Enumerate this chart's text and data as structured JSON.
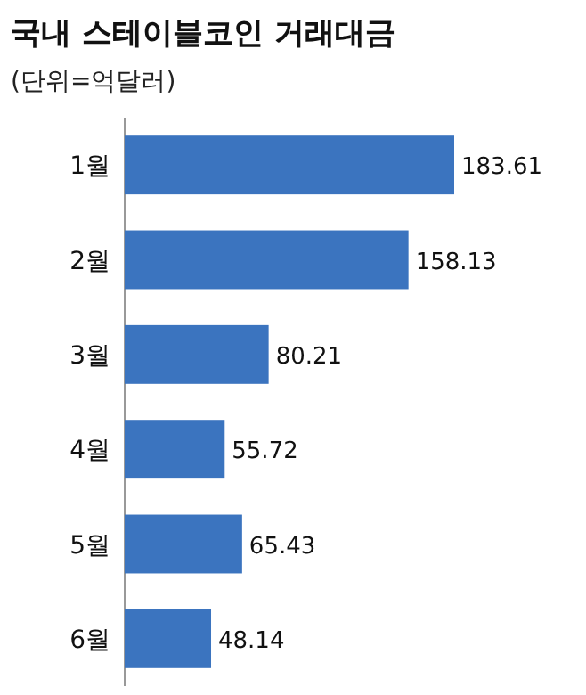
{
  "chart_data": {
    "type": "bar",
    "orientation": "horizontal",
    "title": "국내 스테이블코인 거래대금",
    "subtitle": "(단위=억달러)",
    "categories": [
      "1월",
      "2월",
      "3월",
      "4월",
      "5월",
      "6월"
    ],
    "values": [
      183.61,
      158.13,
      80.21,
      55.72,
      65.43,
      48.14
    ],
    "color": "#3b74bf",
    "data_labels": true
  }
}
